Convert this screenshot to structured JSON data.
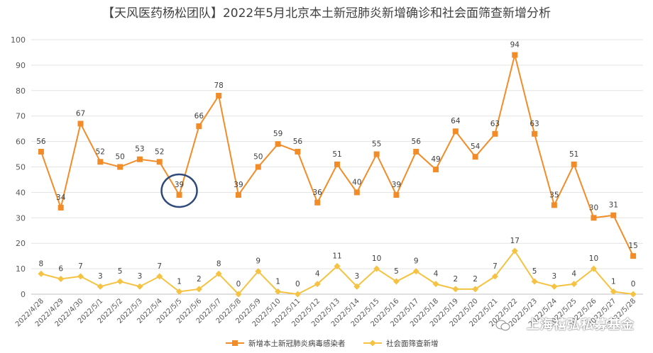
{
  "chart_data": {
    "type": "line",
    "title": "【天风医药杨松团队】2022年5月北京本土新冠肺炎新增确诊和社会面筛查新增分析",
    "categories": [
      "2022/4/28",
      "2022/4/29",
      "2022/4/30",
      "2022/5/1",
      "2022/5/2",
      "2022/5/3",
      "2022/5/4",
      "2022/5/5",
      "2022/5/6",
      "2022/5/7",
      "2022/5/8",
      "2022/5/9",
      "2022/5/10",
      "2022/5/11",
      "2022/5/12",
      "2022/5/13",
      "2022/5/14",
      "2022/5/15",
      "2022/5/16",
      "2022/5/17",
      "2022/5/18",
      "2022/5/19",
      "2022/5/20",
      "2022/5/21",
      "2022/5/22",
      "2022/5/23",
      "2022/5/24",
      "2022/5/25",
      "2022/5/26",
      "2022/5/27",
      "2022/5/28"
    ],
    "series": [
      {
        "name": "新增本土新冠肺炎病毒感染者",
        "color": "#f28c28",
        "marker": "square",
        "values": [
          56,
          34,
          67,
          52,
          50,
          53,
          52,
          39,
          66,
          78,
          39,
          50,
          59,
          56,
          36,
          51,
          40,
          55,
          39,
          56,
          49,
          64,
          54,
          63,
          94,
          63,
          35,
          51,
          30,
          31,
          15
        ]
      },
      {
        "name": "社会面筛查新增",
        "color": "#f5c242",
        "marker": "diamond",
        "values": [
          8,
          6,
          7,
          3,
          5,
          3,
          7,
          1,
          2,
          8,
          0,
          9,
          1,
          0,
          4,
          11,
          3,
          10,
          5,
          9,
          4,
          2,
          2,
          7,
          17,
          5,
          3,
          4,
          10,
          1,
          0
        ]
      }
    ],
    "ylim": [
      0,
      100
    ],
    "yticks": [
      0,
      10,
      20,
      30,
      40,
      50,
      60,
      70,
      80,
      90,
      100
    ],
    "grid": true,
    "legend": "bottom",
    "highlight": {
      "series": 0,
      "category": "2022/5/5",
      "color": "#2f4a7a"
    }
  },
  "watermark": "上海禧弘私募基金",
  "watermark_icon": "wechat-icon"
}
